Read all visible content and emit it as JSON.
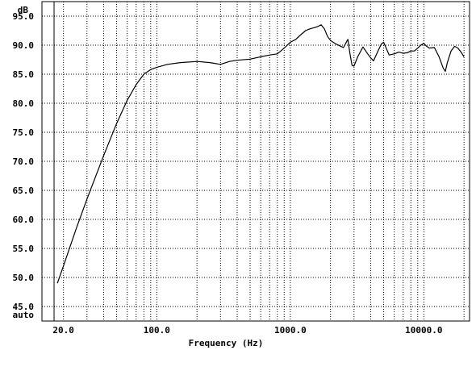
{
  "chart_data": {
    "type": "line",
    "title": "",
    "xlabel": "Frequency (Hz)",
    "ylabel": "dB",
    "x_scale": "log",
    "xlim": [
      17,
      22000
    ],
    "ylim": [
      42.5,
      97.5
    ],
    "grid": true,
    "y_ticks": [
      95.0,
      90.0,
      85.0,
      80.0,
      75.0,
      70.0,
      65.0,
      60.0,
      55.0,
      50.0,
      45.0
    ],
    "y_tick_labels": [
      "95.0",
      "90.0",
      "85.0",
      "80.0",
      "75.0",
      "70.0",
      "65.0",
      "60.0",
      "55.0",
      "50.0",
      "45.0"
    ],
    "y_bottom_label": "auto",
    "x_ticks": [
      20,
      100,
      1000,
      10000
    ],
    "x_tick_labels": [
      "20.0",
      "100.0",
      "1000.0",
      "10000.0"
    ],
    "series": [
      {
        "x": [
          18,
          20,
          25,
          30,
          40,
          50,
          60,
          70,
          80,
          90,
          100,
          120,
          150,
          200,
          250,
          300,
          350,
          400,
          500,
          600,
          700,
          800,
          900,
          1000,
          1100,
          1200,
          1300,
          1400,
          1500,
          1600,
          1700,
          1800,
          1900,
          2000,
          2200,
          2500,
          2700,
          2800,
          2900,
          3000,
          3200,
          3500,
          3800,
          4000,
          4200,
          4500,
          4800,
          5000,
          5500,
          6000,
          6500,
          7000,
          7500,
          8000,
          8500,
          9000,
          9500,
          10000,
          10500,
          11000,
          12000,
          13000,
          14000,
          14500,
          15000,
          16000,
          17000,
          18000,
          19000,
          20000
        ],
        "values": [
          49.0,
          52.0,
          58.5,
          63.5,
          71.0,
          76.5,
          80.5,
          83.2,
          85.0,
          85.8,
          86.2,
          86.7,
          87.0,
          87.2,
          87.0,
          86.7,
          87.2,
          87.4,
          87.6,
          88.0,
          88.3,
          88.5,
          89.5,
          90.5,
          91.0,
          91.8,
          92.5,
          92.8,
          93.0,
          93.2,
          93.5,
          92.8,
          91.5,
          90.8,
          90.2,
          89.6,
          91.0,
          88.5,
          86.5,
          86.4,
          88.0,
          89.7,
          88.5,
          87.8,
          87.3,
          88.8,
          90.2,
          90.5,
          88.3,
          88.5,
          88.8,
          88.6,
          88.7,
          89.0,
          89.0,
          89.5,
          90.0,
          90.3,
          89.8,
          89.5,
          89.6,
          88.0,
          86.0,
          85.5,
          87.0,
          89.0,
          89.8,
          89.5,
          88.8,
          88.0
        ]
      }
    ]
  }
}
